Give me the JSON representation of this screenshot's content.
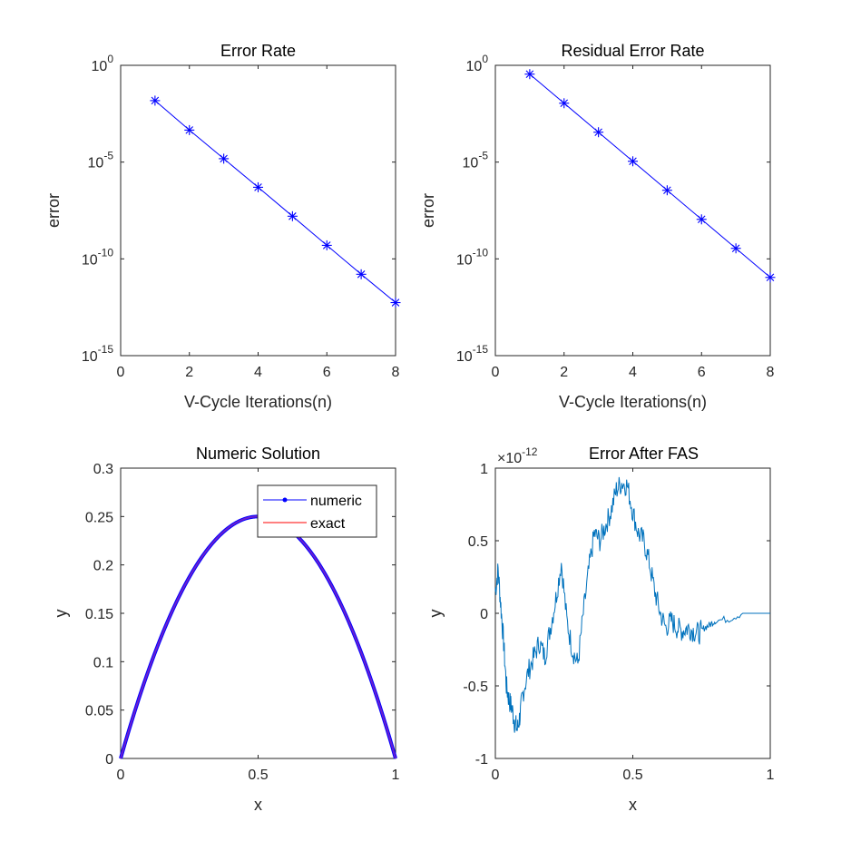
{
  "colors": {
    "axes": "#262626",
    "series_blue": "#0000ff",
    "series_red": "#ff0000",
    "series_default": "#0072bd",
    "solution_overlap": "#6a1fd0"
  },
  "chart_data": [
    {
      "type": "line",
      "title": "Error Rate",
      "xlabel": "V-Cycle Iterations(n)",
      "ylabel": "error",
      "yscale": "log",
      "xlim": [
        0,
        8
      ],
      "ylim": [
        1e-15,
        1
      ],
      "xticks": [
        0,
        2,
        4,
        6,
        8
      ],
      "xtick_labels": [
        "0",
        "2",
        "4",
        "6",
        "8"
      ],
      "yticks": [
        1e-15,
        1e-10,
        1e-05,
        1
      ],
      "ytick_labels": [
        {
          "base": "10",
          "exp": "-15"
        },
        {
          "base": "10",
          "exp": "-10"
        },
        {
          "base": "10",
          "exp": "-5"
        },
        {
          "base": "10",
          "exp": "0"
        }
      ],
      "marker": "asterisk",
      "grid": false,
      "series": [
        {
          "x": [
            1,
            2,
            3,
            4,
            5,
            6,
            7,
            8
          ],
          "y": [
            0.015,
            0.00045,
            1.5e-05,
            5e-07,
            1.6e-08,
            5e-10,
            1.6e-11,
            5.5e-13
          ]
        }
      ]
    },
    {
      "type": "line",
      "title": "Residual Error Rate",
      "xlabel": "V-Cycle Iterations(n)",
      "ylabel": "error",
      "yscale": "log",
      "xlim": [
        0,
        8
      ],
      "ylim": [
        1e-15,
        1
      ],
      "xticks": [
        0,
        2,
        4,
        6,
        8
      ],
      "xtick_labels": [
        "0",
        "2",
        "4",
        "6",
        "8"
      ],
      "yticks": [
        1e-15,
        1e-10,
        1e-05,
        1
      ],
      "ytick_labels": [
        {
          "base": "10",
          "exp": "-15"
        },
        {
          "base": "10",
          "exp": "-10"
        },
        {
          "base": "10",
          "exp": "-5"
        },
        {
          "base": "10",
          "exp": "0"
        }
      ],
      "marker": "asterisk",
      "grid": false,
      "series": [
        {
          "x": [
            1,
            2,
            3,
            4,
            5,
            6,
            7,
            8
          ],
          "y": [
            0.35,
            0.011,
            0.00035,
            1.1e-05,
            3.5e-07,
            1.1e-08,
            3.5e-10,
            1.1e-11
          ]
        }
      ]
    },
    {
      "type": "line",
      "title": "Numeric Solution",
      "xlabel": "x",
      "ylabel": "y",
      "xlim": [
        0,
        1
      ],
      "ylim": [
        0,
        0.3
      ],
      "xticks": [
        0,
        0.5,
        1
      ],
      "xtick_labels": [
        "0",
        "0.5",
        "1"
      ],
      "yticks": [
        0,
        0.05,
        0.1,
        0.15,
        0.2,
        0.25,
        0.3
      ],
      "ytick_labels": [
        "0",
        "0.05",
        "0.1",
        "0.15",
        "0.2",
        "0.25",
        "0.3"
      ],
      "grid": false,
      "legend": "top-right",
      "function": "x(1-x)",
      "series": [
        {
          "name": "numeric",
          "style": "line with dot markers"
        },
        {
          "name": "exact",
          "style": "line"
        }
      ],
      "sample_points": {
        "x": [
          0,
          0.1,
          0.2,
          0.3,
          0.4,
          0.5,
          0.6,
          0.7,
          0.8,
          0.9,
          1
        ],
        "y": [
          0,
          0.09,
          0.16,
          0.21,
          0.24,
          0.25,
          0.24,
          0.21,
          0.16,
          0.09,
          0
        ]
      }
    },
    {
      "type": "line",
      "title": "Error After FAS",
      "scale_factor": {
        "prefix": "×10",
        "exp": "-12"
      },
      "xlabel": "x",
      "ylabel": "y",
      "xlim": [
        0,
        1
      ],
      "ylim": [
        -1,
        1
      ],
      "xticks": [
        0,
        0.5,
        1
      ],
      "xtick_labels": [
        "0",
        "0.5",
        "1"
      ],
      "yticks": [
        -1,
        -0.5,
        0,
        0.5,
        1
      ],
      "ytick_labels": [
        "-1",
        "-0.5",
        "0",
        "0.5",
        "1"
      ],
      "grid": false,
      "series": [
        {
          "x": [
            0,
            0.01,
            0.02,
            0.03,
            0.04,
            0.05,
            0.06,
            0.07,
            0.08,
            0.09,
            0.1,
            0.12,
            0.14,
            0.16,
            0.18,
            0.2,
            0.22,
            0.24,
            0.26,
            0.28,
            0.3,
            0.32,
            0.34,
            0.36,
            0.38,
            0.4,
            0.42,
            0.44,
            0.46,
            0.48,
            0.5,
            0.52,
            0.54,
            0.56,
            0.58,
            0.6,
            0.62,
            0.64,
            0.66,
            0.68,
            0.7,
            0.72,
            0.74,
            0.76,
            0.78,
            0.8,
            0.85,
            0.9,
            0.95,
            1.0
          ],
          "y": [
            0.15,
            0.3,
            0.05,
            -0.2,
            -0.5,
            -0.6,
            -0.65,
            -0.75,
            -0.8,
            -0.7,
            -0.55,
            -0.4,
            -0.3,
            -0.2,
            -0.3,
            -0.1,
            0.1,
            0.35,
            -0.05,
            -0.25,
            -0.35,
            0.0,
            0.3,
            0.55,
            0.5,
            0.6,
            0.7,
            0.85,
            0.9,
            0.88,
            0.7,
            0.55,
            0.5,
            0.35,
            0.15,
            0.0,
            -0.1,
            -0.05,
            -0.1,
            -0.12,
            -0.1,
            -0.12,
            -0.14,
            -0.1,
            -0.08,
            -0.05,
            -0.04,
            0.0,
            0.0,
            0.0
          ]
        }
      ]
    }
  ]
}
